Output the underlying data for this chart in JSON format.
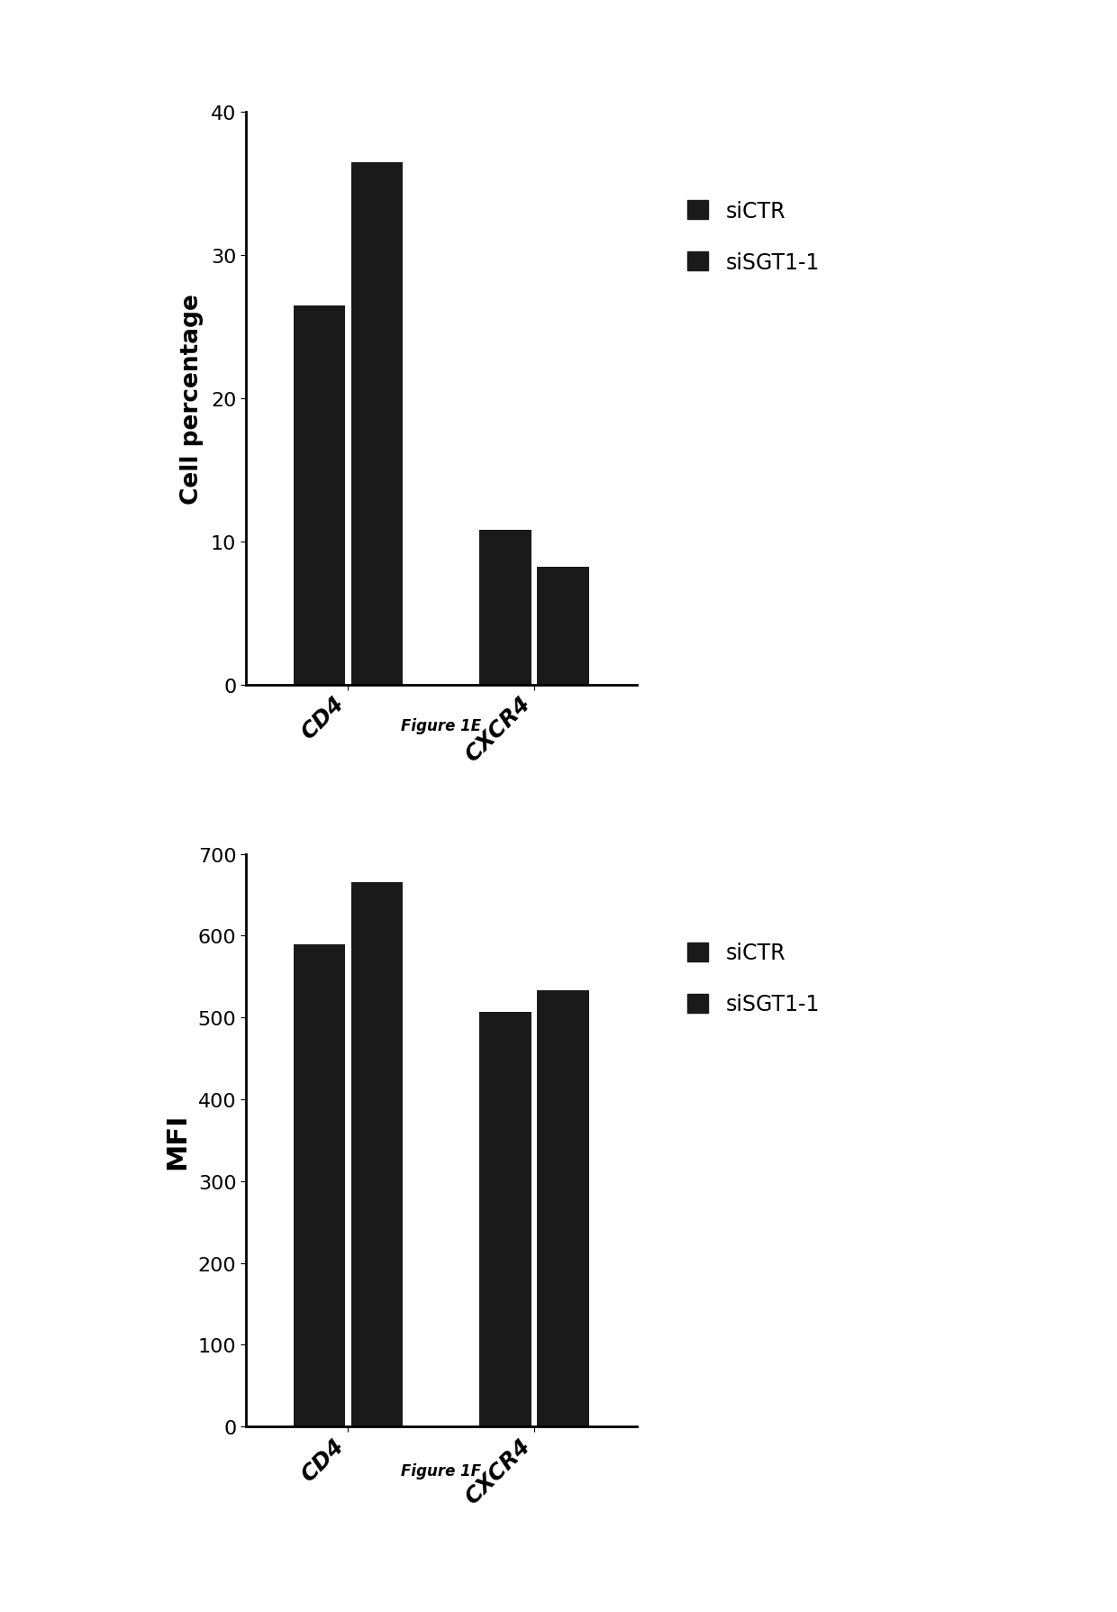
{
  "fig1e": {
    "title": "Figure 1E",
    "ylabel": "Cell percentage",
    "categories": [
      "CD4",
      "CXCR4"
    ],
    "siCTR": [
      26.5,
      10.8
    ],
    "siSGT1_1": [
      36.5,
      8.2
    ],
    "ylim": [
      0,
      40
    ],
    "yticks": [
      0,
      10,
      20,
      30,
      40
    ]
  },
  "fig1f": {
    "title": "Figure 1F",
    "ylabel": "MFI",
    "categories": [
      "CD4",
      "CXCR4"
    ],
    "siCTR": [
      590,
      507
    ],
    "siSGT1_1": [
      665,
      533
    ],
    "ylim": [
      0,
      700
    ],
    "yticks": [
      0,
      100,
      200,
      300,
      400,
      500,
      600,
      700
    ]
  },
  "bar_color": "#1a1a1a",
  "bar_width": 0.28,
  "bar_gap": 0.03,
  "legend_labels": [
    "siCTR",
    "siSGT1-1"
  ],
  "figure_label_fontsize": 12,
  "axis_label_fontsize": 19,
  "tick_fontsize": 16,
  "legend_fontsize": 17
}
